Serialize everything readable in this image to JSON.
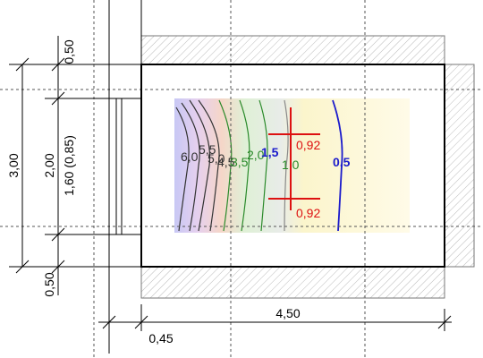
{
  "dimensions": {
    "top_wall": "0,50",
    "outer_height": "3,00",
    "window_height": "2,00",
    "window_sill": "1,60 (0,85)",
    "bottom_wall": "0,50",
    "room_width": "4,50",
    "wall_thickness": "0,45"
  },
  "measurement_points": [
    "0,92",
    "0,92"
  ],
  "contour_labels": [
    "6,0",
    "5,5",
    "5,0",
    "4,5",
    "3,5",
    "2,0",
    "1,5",
    "1,0",
    "0,5"
  ]
}
